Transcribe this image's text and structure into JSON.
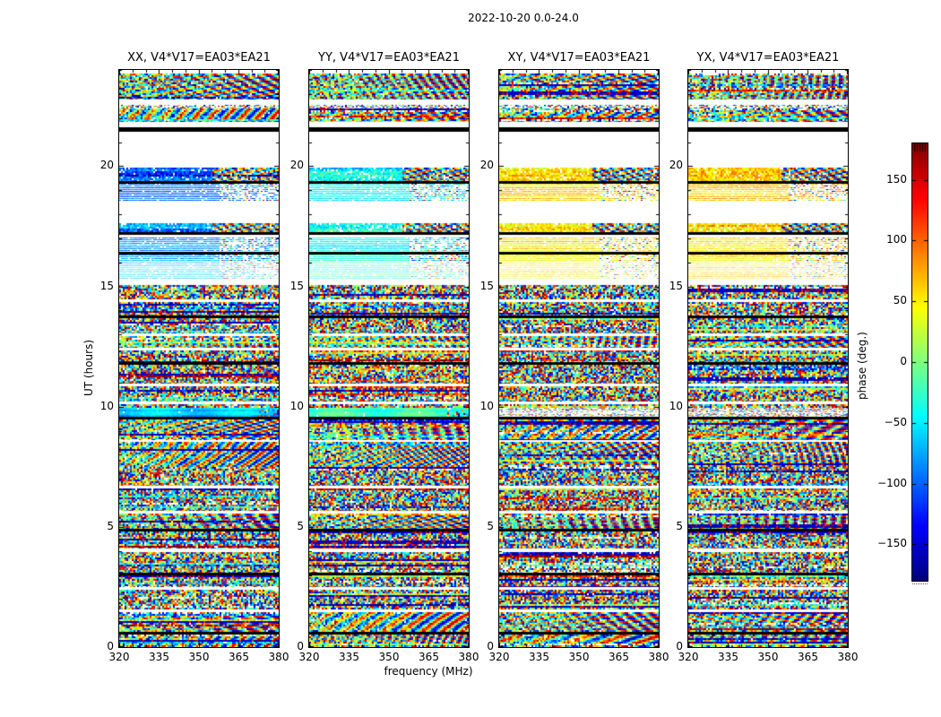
{
  "figure": {
    "background": "#ffffff",
    "frame_color": "#000000",
    "text_color": "#000000"
  },
  "chart_data": {
    "type": "heatmap",
    "title": "2022-10-20 0.0-24.0",
    "xlabel": "frequency (MHz)",
    "ylabel": "UT (hours)",
    "x_range": [
      320,
      380
    ],
    "y_range": [
      0,
      24
    ],
    "x_ticks": [
      "320",
      "335",
      "350",
      "365",
      "380"
    ],
    "x_tick_values": [
      320,
      335,
      350,
      365,
      380
    ],
    "y_ticks": [
      "0",
      "5",
      "10",
      "15",
      "20"
    ],
    "y_tick_values": [
      0,
      5,
      10,
      15,
      20
    ],
    "grid": false,
    "panels": [
      {
        "id": "XX",
        "title": "XX, V4*V17=EA03*EA21"
      },
      {
        "id": "YY",
        "title": "YY, V4*V17=EA03*EA21"
      },
      {
        "id": "XY",
        "title": "XY, V4*V17=EA03*EA21"
      },
      {
        "id": "YX",
        "title": "YX, V4*V17=EA03*EA21"
      }
    ],
    "colorbar": {
      "label": "phase (deg.)",
      "colormap": "jet",
      "min": -180,
      "max": 180,
      "ticks": [
        "−150",
        "−100",
        "−50",
        "0",
        "50",
        "100",
        "150"
      ],
      "tick_values": [
        -150,
        -100,
        -50,
        0,
        50,
        100,
        150
      ],
      "position": "right"
    },
    "bands": [
      {
        "ut": [
          23.85,
          22.78
        ],
        "type": "fringe"
      },
      {
        "ut": [
          22.55,
          22.38
        ],
        "type": "speckle"
      },
      {
        "ut": [
          22.38,
          21.82
        ],
        "type": "fringe"
      },
      {
        "ut": [
          21.62,
          21.42
        ],
        "type": "black"
      },
      {
        "ut": [
          19.95,
          19.38
        ],
        "type": "band",
        "bias": {
          "XX": -100,
          "YY": -45,
          "XY": 58,
          "YX": 70
        }
      },
      {
        "ut": [
          19.38,
          19.27
        ],
        "type": "black"
      },
      {
        "ut": [
          19.27,
          18.55
        ],
        "type": "stripes",
        "bias": {
          "XX": -95,
          "YY": -50,
          "XY": 55,
          "YX": 65
        }
      },
      {
        "ut": [
          17.62,
          17.25
        ],
        "type": "band",
        "bias": {
          "XX": -85,
          "YY": -40,
          "XY": 55,
          "YX": 62
        }
      },
      {
        "ut": [
          17.25,
          17.14
        ],
        "type": "black"
      },
      {
        "ut": [
          17.02,
          16.42
        ],
        "type": "stripes",
        "bias": {
          "XX": -75,
          "YY": -45,
          "XY": 52,
          "YX": 58
        }
      },
      {
        "ut": [
          16.42,
          16.32
        ],
        "type": "black"
      },
      {
        "ut": [
          16.32,
          16.02
        ],
        "type": "stripes",
        "bias": {
          "XX": -70,
          "YY": -40,
          "XY": 50,
          "YX": 55
        }
      },
      {
        "ut": [
          16.02,
          15.3
        ],
        "type": "pale",
        "bias": {
          "XX": -55,
          "YY": -25,
          "XY": 45,
          "YX": 50
        }
      },
      {
        "ut": [
          15.05,
          14.46
        ],
        "type": "noise"
      },
      {
        "ut": [
          14.35,
          13.79
        ],
        "type": "noise"
      },
      {
        "ut": [
          13.79,
          13.68
        ],
        "type": "black"
      },
      {
        "ut": [
          13.68,
          13.04
        ],
        "type": "noise"
      },
      {
        "ut": [
          12.93,
          12.45
        ],
        "type": "fringe"
      },
      {
        "ut": [
          12.34,
          11.85
        ],
        "type": "noise"
      },
      {
        "ut": [
          11.85,
          11.74
        ],
        "type": "black"
      },
      {
        "ut": [
          11.74,
          10.96
        ],
        "type": "noise"
      },
      {
        "ut": [
          10.85,
          10.21
        ],
        "type": "noise"
      },
      {
        "ut": [
          10.1,
          9.95
        ],
        "type": "noise"
      },
      {
        "ut": [
          9.95,
          9.58
        ],
        "type": "smooth",
        "bias": {
          "XX": -55,
          "YY": -15,
          "XY": null,
          "YX": null
        }
      },
      {
        "ut": [
          9.58,
          9.47
        ],
        "type": "black"
      },
      {
        "ut": [
          9.47,
          8.62
        ],
        "type": "fringe"
      },
      {
        "ut": [
          8.52,
          7.5
        ],
        "type": "fringe"
      },
      {
        "ut": [
          7.5,
          6.72
        ],
        "type": "noise"
      },
      {
        "ut": [
          6.6,
          5.66
        ],
        "type": "noise"
      },
      {
        "ut": [
          5.55,
          4.92
        ],
        "type": "fringe"
      },
      {
        "ut": [
          4.92,
          4.82
        ],
        "type": "black"
      },
      {
        "ut": [
          4.82,
          4.1
        ],
        "type": "noise"
      },
      {
        "ut": [
          3.95,
          3.1
        ],
        "type": "noise"
      },
      {
        "ut": [
          3.1,
          3.0
        ],
        "type": "black"
      },
      {
        "ut": [
          3.0,
          2.5
        ],
        "type": "noise"
      },
      {
        "ut": [
          2.39,
          1.57
        ],
        "type": "noise"
      },
      {
        "ut": [
          1.45,
          0.63
        ],
        "type": "fringe"
      },
      {
        "ut": [
          0.63,
          0.52
        ],
        "type": "black"
      },
      {
        "ut": [
          0.52,
          0.0
        ],
        "type": "fringe"
      }
    ]
  }
}
